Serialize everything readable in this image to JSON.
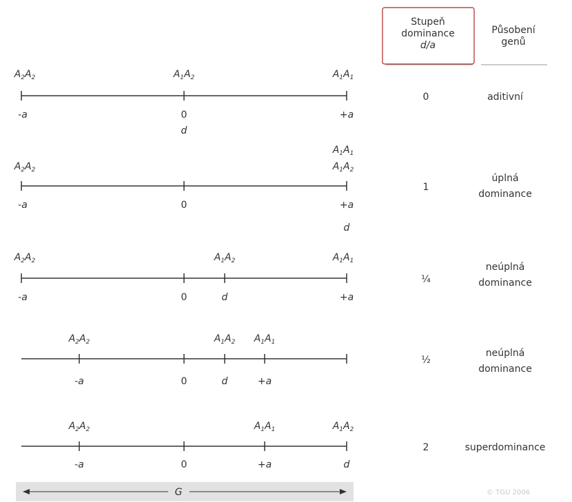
{
  "header": {
    "degree_line1": "Stupeň",
    "degree_line2": "dominance",
    "degree_line3": "d/a",
    "action_line1": "Působení",
    "action_line2": "genů"
  },
  "rows": [
    {
      "ratio": "0",
      "effect_line1": "aditivní",
      "effect_line2": "",
      "genotypes": [
        {
          "sub": [
            "2",
            "2"
          ],
          "anchor": "a_neg"
        },
        {
          "sub": [
            "1",
            "2"
          ],
          "anchor": "zero"
        },
        {
          "sub": [
            "1",
            "1"
          ],
          "anchor": "a_pos"
        }
      ],
      "values": [
        {
          "text": "-a",
          "anchor": "a_neg"
        },
        {
          "text": "0",
          "anchor": "zero"
        },
        {
          "text": "+a",
          "anchor": "a_pos"
        },
        {
          "text": "d",
          "anchor": "zero",
          "second": true
        }
      ]
    },
    {
      "ratio": "1",
      "effect_line1": "úplná",
      "effect_line2": "dominance",
      "genotypes": [
        {
          "sub": [
            "2",
            "2"
          ],
          "anchor": "a_neg"
        },
        {
          "sub": [
            "1",
            "1"
          ],
          "anchor": "a_pos",
          "upper": true
        },
        {
          "sub": [
            "1",
            "2"
          ],
          "anchor": "a_pos"
        }
      ],
      "values": [
        {
          "text": "-a",
          "anchor": "a_neg"
        },
        {
          "text": "0",
          "anchor": "zero"
        },
        {
          "text": "+a",
          "anchor": "a_pos"
        },
        {
          "text": "d",
          "anchor": "a_pos",
          "second": true
        }
      ]
    },
    {
      "ratio": "¼",
      "effect_line1": "neúplná",
      "effect_line2": "dominance",
      "genotypes": [
        {
          "sub": [
            "2",
            "2"
          ],
          "anchor": "a_neg"
        },
        {
          "sub": [
            "1",
            "2"
          ],
          "anchor": "d"
        },
        {
          "sub": [
            "1",
            "1"
          ],
          "anchor": "a_pos"
        }
      ],
      "values": [
        {
          "text": "-a",
          "anchor": "a_neg"
        },
        {
          "text": "0",
          "anchor": "zero"
        },
        {
          "text": "d",
          "anchor": "d"
        },
        {
          "text": "+a",
          "anchor": "a_pos"
        }
      ]
    },
    {
      "ratio": "½",
      "effect_line1": "neúplná",
      "effect_line2": "dominance",
      "genotypes": [
        {
          "sub": [
            "2",
            "2"
          ],
          "anchor": "a_neg"
        },
        {
          "sub": [
            "1",
            "2"
          ],
          "anchor": "d"
        },
        {
          "sub": [
            "1",
            "1"
          ],
          "anchor": "a_pos"
        }
      ],
      "values": [
        {
          "text": "-a",
          "anchor": "a_neg"
        },
        {
          "text": "0",
          "anchor": "zero"
        },
        {
          "text": "d",
          "anchor": "d"
        },
        {
          "text": "+a",
          "anchor": "a_pos"
        }
      ]
    },
    {
      "ratio": "2",
      "effect_line1": "superdominance",
      "effect_line2": "",
      "genotypes": [
        {
          "sub": [
            "2",
            "2"
          ],
          "anchor": "a_neg"
        },
        {
          "sub": [
            "1",
            "1"
          ],
          "anchor": "a_pos"
        },
        {
          "sub": [
            "1",
            "2"
          ],
          "anchor": "d"
        }
      ],
      "values": [
        {
          "text": "-a",
          "anchor": "a_neg"
        },
        {
          "text": "0",
          "anchor": "zero"
        },
        {
          "text": "+a",
          "anchor": "a_pos"
        },
        {
          "text": "d",
          "anchor": "d"
        }
      ]
    }
  ],
  "footer": {
    "axis_label": "G",
    "copyright": "© TGU 2006"
  },
  "colors": {
    "line": "#333333",
    "header_box": "#b22222",
    "footer_bar": "#e2e2e2",
    "copyright": "#c8c8c8"
  }
}
